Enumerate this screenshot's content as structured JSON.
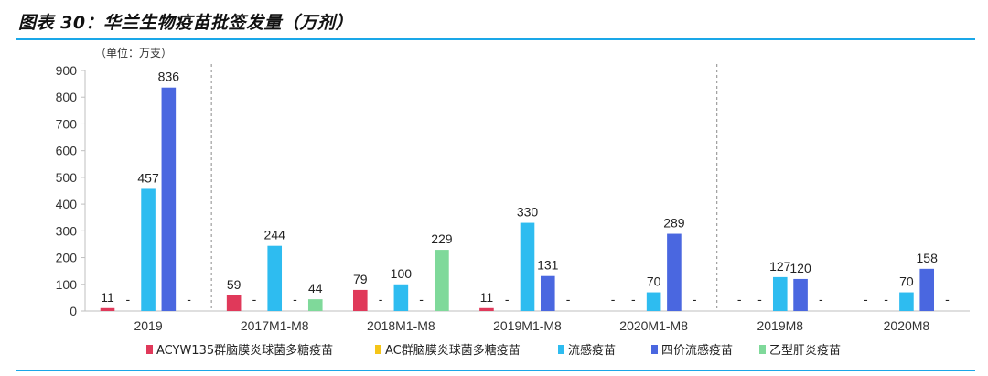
{
  "title": "图表 30：华兰生物疫苗批签发量（万剂）",
  "chart_data": {
    "type": "bar",
    "unit_label": "（单位：万支）",
    "ylim": [
      0,
      900
    ],
    "yticks": [
      0,
      100,
      200,
      300,
      400,
      500,
      600,
      700,
      800,
      900
    ],
    "categories": [
      "2019",
      "2017M1-M8",
      "2018M1-M8",
      "2019M1-M8",
      "2020M1-M8",
      "2019M8",
      "2020M8"
    ],
    "series": [
      {
        "name": "ACYW135群脑膜炎球菌多糖疫苗",
        "color": "#e0395a",
        "values": [
          11,
          59,
          79,
          11,
          null,
          null,
          null
        ]
      },
      {
        "name": "AC群脑膜炎球菌多糖疫苗",
        "color": "#f5c518",
        "values": [
          null,
          null,
          null,
          null,
          null,
          null,
          null
        ]
      },
      {
        "name": "流感疫苗",
        "color": "#2ebcf0",
        "values": [
          457,
          244,
          100,
          330,
          70,
          127,
          70
        ]
      },
      {
        "name": "四价流感疫苗",
        "color": "#4a67e0",
        "values": [
          836,
          null,
          null,
          131,
          289,
          120,
          158
        ]
      },
      {
        "name": "乙型肝炎疫苗",
        "color": "#7fd99a",
        "values": [
          null,
          44,
          229,
          null,
          null,
          null,
          null
        ]
      }
    ],
    "missing_label": "-",
    "grid": false,
    "legend_position": "bottom"
  }
}
